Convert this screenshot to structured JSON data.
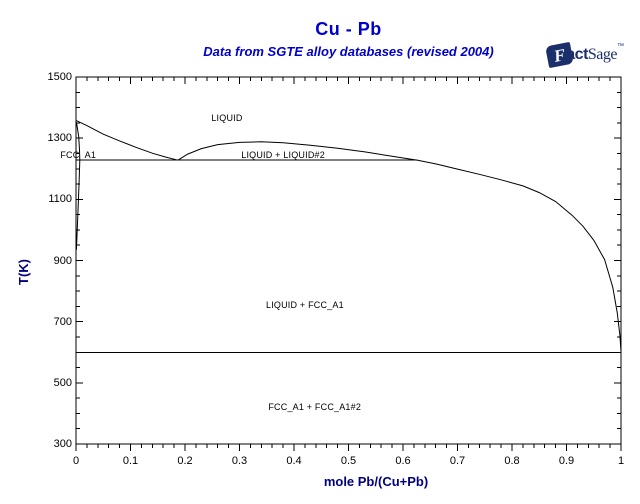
{
  "header": {
    "title": "Cu - Pb",
    "subtitle": "Data from SGTE alloy databases (revised 2004)",
    "logo": {
      "f": "F",
      "act": "act",
      "sage": "Sage",
      "tm": "™"
    }
  },
  "colors": {
    "title_blue": "#0000cc",
    "axis_title_navy": "#000080",
    "logo_navy": "#1b2f6b",
    "curve_black": "#000000",
    "background": "#ffffff"
  },
  "chart_data": {
    "type": "line",
    "title": "Cu - Pb",
    "subtitle": "Data from SGTE alloy databases (revised 2004)",
    "xlabel": "mole Pb/(Cu+Pb)",
    "ylabel": "T(K)",
    "xlim": [
      0,
      1
    ],
    "ylim": [
      300,
      1500
    ],
    "grid": false,
    "legend": null,
    "x_axis": {
      "major_tick_values": [
        0,
        0.1,
        0.2,
        0.3,
        0.4,
        0.5,
        0.6,
        0.7,
        0.8,
        0.9,
        1
      ],
      "major_tick_labels": [
        "0",
        "0.1",
        "0.2",
        "0.3",
        "0.4",
        "0.5",
        "0.6",
        "0.7",
        "0.8",
        "0.9",
        "1"
      ],
      "minor_tick_step": 0.02
    },
    "y_axis": {
      "major_tick_values": [
        1500,
        1300,
        1100,
        900,
        700,
        500,
        300
      ],
      "major_tick_labels": [
        "1500",
        "1300",
        "1100",
        "900",
        "700",
        "500",
        "300"
      ],
      "minor_tick_step": 50
    },
    "series": [
      {
        "name": "liquidus-cu-side",
        "points": [
          [
            0,
            1358
          ],
          [
            0.02,
            1341
          ],
          [
            0.05,
            1313
          ],
          [
            0.08,
            1291
          ],
          [
            0.11,
            1270
          ],
          [
            0.14,
            1251
          ],
          [
            0.165,
            1238
          ],
          [
            0.187,
            1228
          ]
        ]
      },
      {
        "name": "miscibility-gap-and-liquidus-pb-side",
        "points": [
          [
            0.187,
            1228
          ],
          [
            0.205,
            1248
          ],
          [
            0.23,
            1266
          ],
          [
            0.26,
            1279
          ],
          [
            0.3,
            1286
          ],
          [
            0.34,
            1288
          ],
          [
            0.38,
            1285
          ],
          [
            0.43,
            1277
          ],
          [
            0.48,
            1267
          ],
          [
            0.53,
            1255
          ],
          [
            0.58,
            1241
          ],
          [
            0.627,
            1228
          ],
          [
            0.66,
            1216
          ],
          [
            0.7,
            1199
          ],
          [
            0.74,
            1182
          ],
          [
            0.78,
            1164
          ],
          [
            0.82,
            1144
          ],
          [
            0.85,
            1122
          ],
          [
            0.88,
            1093
          ],
          [
            0.91,
            1048
          ],
          [
            0.93,
            1012
          ],
          [
            0.95,
            966
          ],
          [
            0.97,
            903
          ],
          [
            0.985,
            812
          ],
          [
            0.993,
            730
          ],
          [
            0.998,
            655
          ],
          [
            1,
            602
          ]
        ]
      },
      {
        "name": "monotectic-tie-line",
        "straight": true,
        "points": [
          [
            0,
            1228
          ],
          [
            0.627,
            1228
          ]
        ]
      },
      {
        "name": "eutectic-tie-line",
        "straight": true,
        "points": [
          [
            0,
            600
          ],
          [
            1,
            600
          ]
        ]
      },
      {
        "name": "fcc-a1-phase-boundary",
        "points": [
          [
            0.001,
            1352
          ],
          [
            0.005,
            1305
          ],
          [
            0.0065,
            1262
          ],
          [
            0.007,
            1228
          ],
          [
            0.006,
            1175
          ],
          [
            0.0045,
            1105
          ],
          [
            0.003,
            1030
          ],
          [
            0.0015,
            965
          ],
          [
            0.0008,
            935
          ]
        ]
      }
    ],
    "annotations": [
      {
        "text": "LIQUID",
        "x": 0.277,
        "T": 1366
      },
      {
        "text": "LIQUID + LIQUID#2",
        "x": 0.38,
        "T": 1244
      },
      {
        "text": "LIQUID + FCC_A1",
        "x": 0.42,
        "T": 754
      },
      {
        "text": "FCC_A1 + FCC_A1#2",
        "x": 0.438,
        "T": 421
      },
      {
        "text": "FCC_A1",
        "x": 0.004,
        "T": 1244
      }
    ]
  }
}
